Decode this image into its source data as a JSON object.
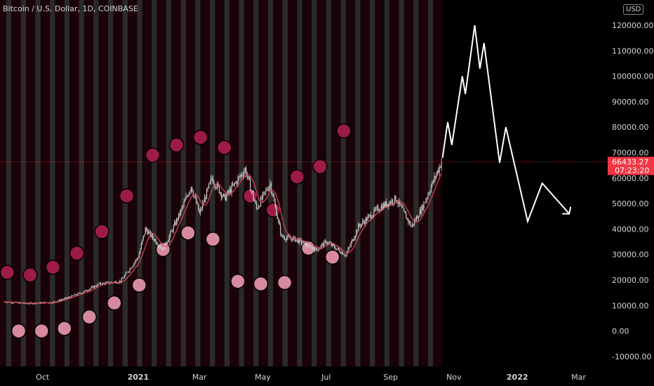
{
  "chart_data": {
    "type": "candlestick",
    "title": "Bitcoin / U.S. Dollar, 1D, COINBASE",
    "currency_label": "USD",
    "x_ticks": [
      {
        "label": "Oct",
        "date": "2020-10-01",
        "bold": false
      },
      {
        "label": "2021",
        "date": "2021-01-01",
        "bold": true
      },
      {
        "label": "Mar",
        "date": "2021-03-01",
        "bold": false
      },
      {
        "label": "May",
        "date": "2021-05-01",
        "bold": false
      },
      {
        "label": "Jul",
        "date": "2021-07-01",
        "bold": false
      },
      {
        "label": "Sep",
        "date": "2021-09-01",
        "bold": false
      },
      {
        "label": "Nov",
        "date": "2021-11-01",
        "bold": false
      },
      {
        "label": "2022",
        "date": "2022-01-01",
        "bold": true
      },
      {
        "label": "Mar",
        "date": "2022-03-01",
        "bold": false
      }
    ],
    "y_ticks": [
      "120000.00",
      "110000.00",
      "100000.00",
      "90000.00",
      "80000.00",
      "70000.00",
      "60000.00",
      "50000.00",
      "40000.00",
      "30000.00",
      "20000.00",
      "10000.00",
      "0.00",
      "-10000.00"
    ],
    "ylim": [
      -10000,
      120000
    ],
    "price_anchors": [
      [
        "2020-08-25",
        11500
      ],
      [
        "2020-09-15",
        10800
      ],
      [
        "2020-10-10",
        11200
      ],
      [
        "2020-10-25",
        13000
      ],
      [
        "2020-11-10",
        15500
      ],
      [
        "2020-11-25",
        18500
      ],
      [
        "2020-12-15",
        19500
      ],
      [
        "2021-01-01",
        29000
      ],
      [
        "2021-01-08",
        40000
      ],
      [
        "2021-01-25",
        32000
      ],
      [
        "2021-02-10",
        46000
      ],
      [
        "2021-02-21",
        57000
      ],
      [
        "2021-03-01",
        46000
      ],
      [
        "2021-03-13",
        60000
      ],
      [
        "2021-03-25",
        52000
      ],
      [
        "2021-04-14",
        63500
      ],
      [
        "2021-04-25",
        48000
      ],
      [
        "2021-05-08",
        58000
      ],
      [
        "2021-05-19",
        37000
      ],
      [
        "2021-06-01",
        36000
      ],
      [
        "2021-06-22",
        32000
      ],
      [
        "2021-07-01",
        35000
      ],
      [
        "2021-07-20",
        29800
      ],
      [
        "2021-08-01",
        41000
      ],
      [
        "2021-08-20",
        48000
      ],
      [
        "2021-09-06",
        52000
      ],
      [
        "2021-09-21",
        41000
      ],
      [
        "2021-10-01",
        48000
      ],
      [
        "2021-10-20",
        66433
      ]
    ],
    "last_price": {
      "value": 66433.27,
      "label": "66433.27",
      "countdown": "07:23:20"
    },
    "projection_path": [
      [
        "2021-10-21",
        68000
      ],
      [
        "2021-10-26",
        82000
      ],
      [
        "2021-10-30",
        73000
      ],
      [
        "2021-11-09",
        100000
      ],
      [
        "2021-11-12",
        93000
      ],
      [
        "2021-11-21",
        120000
      ],
      [
        "2021-11-26",
        103000
      ],
      [
        "2021-11-30",
        113000
      ],
      [
        "2021-12-15",
        66000
      ],
      [
        "2021-12-21",
        80000
      ],
      [
        "2022-01-11",
        43000
      ],
      [
        "2022-01-25",
        58000
      ],
      [
        "2022-02-20",
        46000
      ]
    ],
    "circles_dark": [
      [
        "2020-08-28",
        23000
      ],
      [
        "2020-09-19",
        22000
      ],
      [
        "2020-10-11",
        25000
      ],
      [
        "2020-11-03",
        30500
      ],
      [
        "2020-11-27",
        39000
      ],
      [
        "2020-12-21",
        53000
      ],
      [
        "2021-01-15",
        69000
      ],
      [
        "2021-02-07",
        73000
      ],
      [
        "2021-03-02",
        76000
      ],
      [
        "2021-03-25",
        72000
      ],
      [
        "2021-04-19",
        53000
      ],
      [
        "2021-05-11",
        47500
      ],
      [
        "2021-06-03",
        60500
      ],
      [
        "2021-06-25",
        64500
      ],
      [
        "2021-07-18",
        78500
      ]
    ],
    "circles_light": [
      [
        "2020-09-08",
        0
      ],
      [
        "2020-09-30",
        0
      ],
      [
        "2020-10-22",
        1000
      ],
      [
        "2020-11-15",
        5500
      ],
      [
        "2020-12-09",
        11000
      ],
      [
        "2021-01-02",
        18000
      ],
      [
        "2021-01-25",
        32000
      ],
      [
        "2021-02-18",
        38500
      ],
      [
        "2021-03-14",
        36000
      ],
      [
        "2021-04-07",
        19500
      ],
      [
        "2021-04-29",
        18500
      ],
      [
        "2021-05-22",
        19000
      ],
      [
        "2021-06-14",
        32500
      ],
      [
        "2021-07-07",
        29000
      ]
    ],
    "colors": {
      "background": "#000000",
      "band_dark": "#1a0208",
      "band_gray": "#2a2a2a",
      "circle_dark": "#9c1c46",
      "circle_light": "#d78a9f",
      "candle": "#c8c8c8",
      "moving_average": "#e0465a",
      "projection": "#ffffff",
      "price_label": "#f23645"
    }
  }
}
